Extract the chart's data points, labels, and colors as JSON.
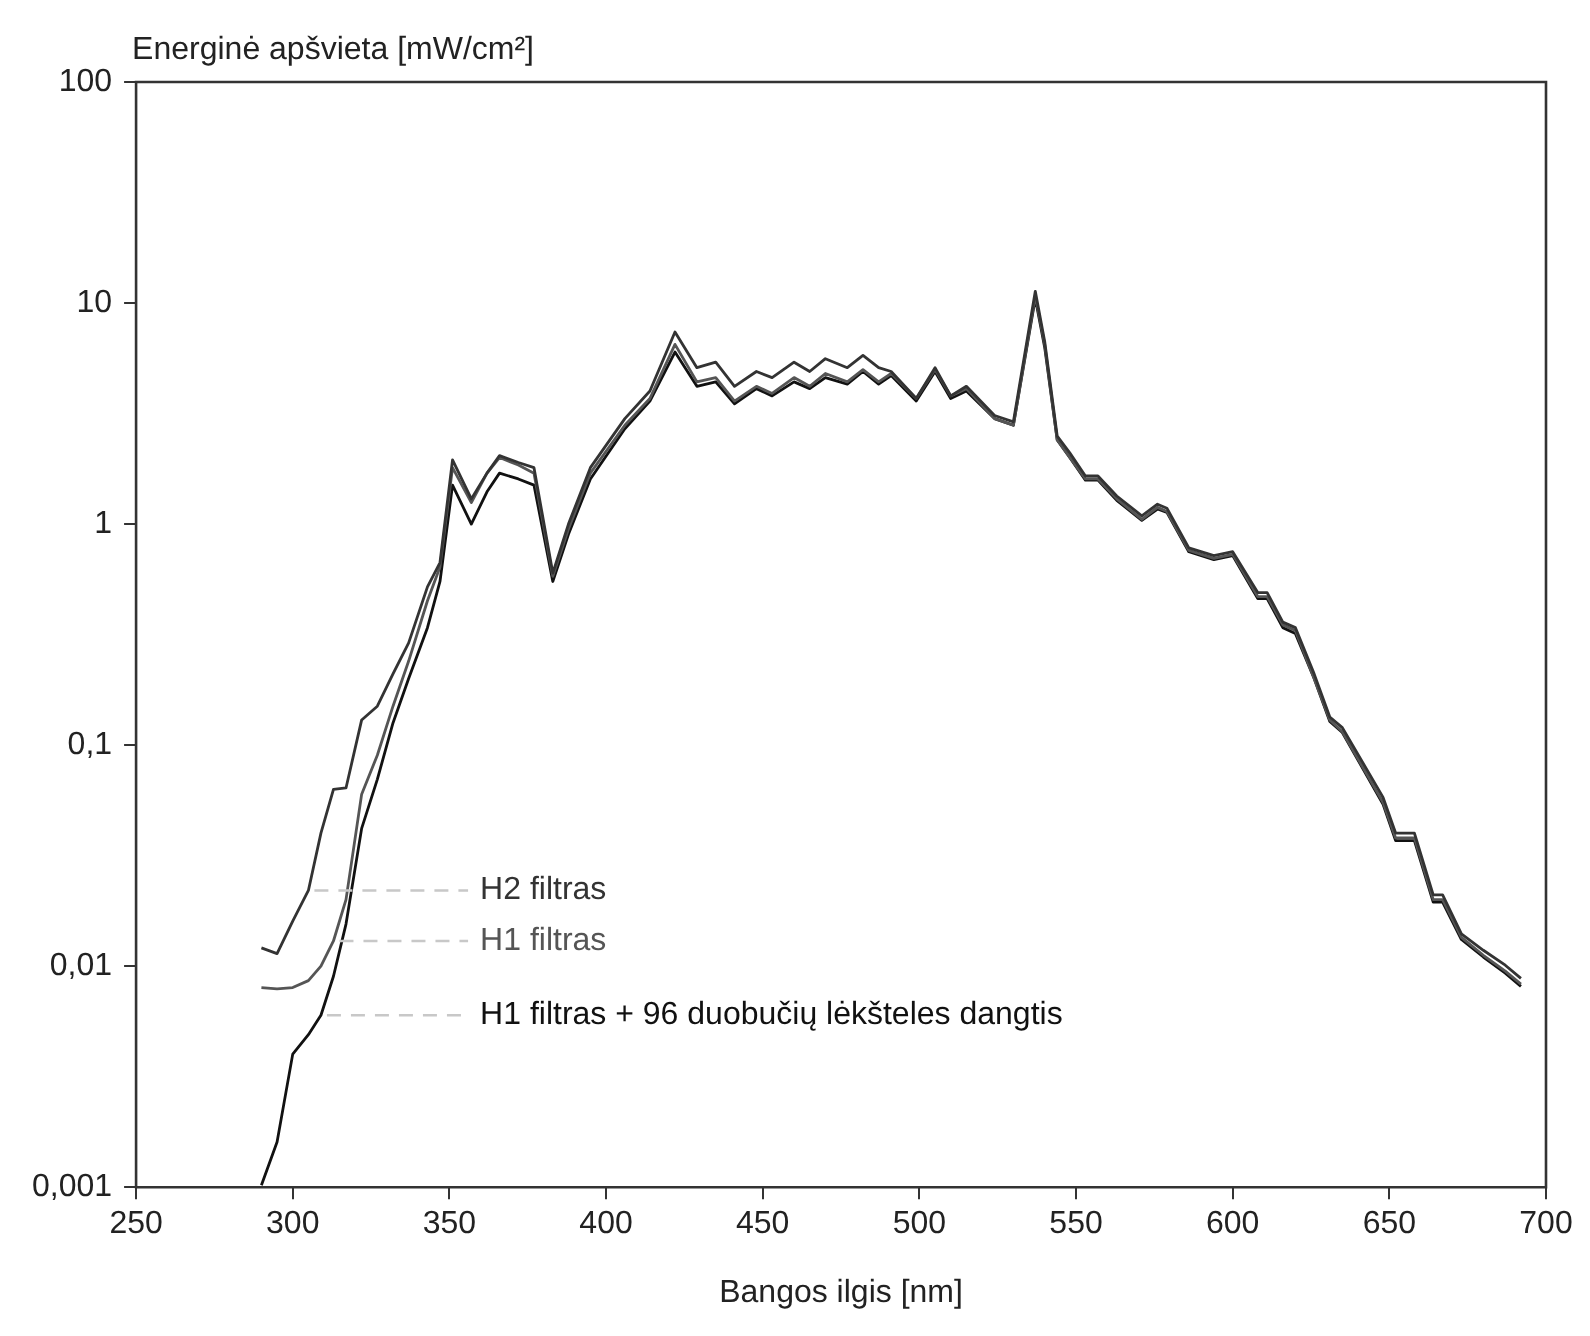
{
  "chart_data": {
    "type": "line",
    "ylabel": "Energinė apšvieta [mW/cm²]",
    "xlabel": "Bangos ilgis [nm]",
    "x": [
      290,
      295,
      300,
      305,
      309,
      313,
      317,
      322,
      327,
      332,
      337,
      343,
      347,
      351,
      357,
      362,
      366,
      372,
      377,
      383,
      388,
      395,
      406,
      414,
      422,
      429,
      435,
      441,
      448,
      453,
      460,
      465,
      470,
      477,
      482,
      487,
      491,
      499,
      505,
      510,
      515,
      524,
      530,
      537,
      540,
      544,
      548,
      553,
      557,
      563,
      571,
      576,
      579,
      586,
      594,
      600,
      608,
      611,
      616,
      620,
      626,
      631,
      635,
      648,
      652,
      658,
      664,
      667,
      673,
      680,
      687,
      692
    ],
    "series": [
      {
        "name": "H2 filtras",
        "color": "#333333",
        "values": [
          0.0121,
          0.0114,
          0.016,
          0.022,
          0.04,
          0.063,
          0.064,
          0.13,
          0.15,
          0.21,
          0.29,
          0.52,
          0.67,
          1.95,
          1.3,
          1.7,
          2.04,
          1.9,
          1.8,
          0.6,
          1.0,
          1.8,
          3.0,
          4.0,
          7.4,
          5.1,
          5.4,
          4.2,
          4.9,
          4.6,
          5.4,
          4.9,
          5.6,
          5.1,
          5.8,
          5.1,
          4.9,
          3.7,
          5.1,
          3.8,
          4.2,
          3.1,
          2.9,
          11.3,
          6.7,
          2.5,
          2.1,
          1.65,
          1.65,
          1.34,
          1.09,
          1.23,
          1.18,
          0.78,
          0.72,
          0.75,
          0.49,
          0.49,
          0.36,
          0.34,
          0.21,
          0.134,
          0.12,
          0.058,
          0.04,
          0.04,
          0.021,
          0.021,
          0.014,
          0.0118,
          0.0101,
          0.0088
        ]
      },
      {
        "name": "H1 filtras",
        "color": "#555555",
        "values": [
          0.008,
          0.0079,
          0.008,
          0.0086,
          0.01,
          0.013,
          0.02,
          0.06,
          0.09,
          0.15,
          0.24,
          0.45,
          0.64,
          1.8,
          1.25,
          1.7,
          2.0,
          1.85,
          1.7,
          0.58,
          0.95,
          1.7,
          2.8,
          3.7,
          6.5,
          4.4,
          4.6,
          3.6,
          4.2,
          3.9,
          4.6,
          4.2,
          4.8,
          4.4,
          5.0,
          4.4,
          4.8,
          3.7,
          5.0,
          3.8,
          4.1,
          3.0,
          2.8,
          10.8,
          6.5,
          2.4,
          2.0,
          1.6,
          1.6,
          1.3,
          1.05,
          1.19,
          1.14,
          0.76,
          0.7,
          0.73,
          0.47,
          0.47,
          0.35,
          0.33,
          0.2,
          0.13,
          0.115,
          0.055,
          0.038,
          0.038,
          0.02,
          0.02,
          0.0135,
          0.0112,
          0.0095,
          0.0083
        ]
      },
      {
        "name": "H1 filtras + 96 duobučių lėkšteles dangtis",
        "color": "#111111",
        "values": [
          0.00102,
          0.0016,
          0.004,
          0.0049,
          0.006,
          0.009,
          0.0155,
          0.042,
          0.07,
          0.126,
          0.2,
          0.34,
          0.55,
          1.5,
          1.0,
          1.4,
          1.7,
          1.6,
          1.5,
          0.55,
          0.9,
          1.6,
          2.7,
          3.6,
          6.0,
          4.2,
          4.4,
          3.5,
          4.1,
          3.8,
          4.4,
          4.1,
          4.6,
          4.3,
          4.9,
          4.3,
          4.7,
          3.6,
          4.9,
          3.7,
          4.0,
          3.0,
          2.8,
          10.5,
          6.3,
          2.4,
          2.0,
          1.58,
          1.58,
          1.28,
          1.04,
          1.17,
          1.13,
          0.75,
          0.69,
          0.72,
          0.46,
          0.46,
          0.34,
          0.32,
          0.2,
          0.128,
          0.114,
          0.054,
          0.037,
          0.037,
          0.0195,
          0.0195,
          0.0132,
          0.011,
          0.0093,
          0.0081
        ]
      }
    ],
    "xlim": [
      250,
      700
    ],
    "xticks": [
      250,
      300,
      350,
      400,
      450,
      500,
      550,
      600,
      650,
      700
    ],
    "log": "y",
    "ylim": [
      0.001,
      100
    ],
    "yticks": [
      {
        "value": 0.001,
        "label": "0,001"
      },
      {
        "value": 0.01,
        "label": "0,01"
      },
      {
        "value": 0.1,
        "label": "0,1"
      },
      {
        "value": 1,
        "label": "1"
      },
      {
        "value": 10,
        "label": "10"
      },
      {
        "value": 100,
        "label": "100"
      }
    ],
    "grid": false,
    "legend": false,
    "marker": "none",
    "line_style": "solid"
  }
}
